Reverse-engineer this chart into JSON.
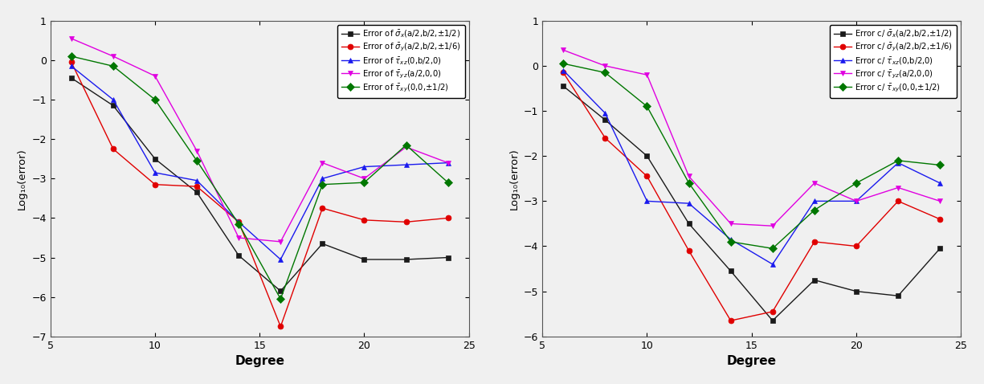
{
  "x": [
    6,
    8,
    10,
    12,
    14,
    16,
    18,
    20,
    22,
    24
  ],
  "left": {
    "sigma_x": [
      -0.45,
      -1.15,
      -2.5,
      -3.35,
      -4.95,
      -5.85,
      -4.65,
      -5.05,
      -5.05,
      -5.0
    ],
    "sigma_y": [
      -0.05,
      -2.25,
      -3.15,
      -3.2,
      -4.1,
      -6.75,
      -3.75,
      -4.05,
      -4.1,
      -4.0
    ],
    "tau_xz": [
      -0.15,
      -1.0,
      -2.85,
      -3.05,
      -4.1,
      -5.05,
      -3.0,
      -2.7,
      -2.65,
      -2.6
    ],
    "tau_yz": [
      0.55,
      0.1,
      -0.4,
      -2.3,
      -4.5,
      -4.6,
      -2.6,
      -3.0,
      -2.2,
      -2.6
    ],
    "tau_xz2": [
      0.1,
      -0.15,
      -1.0,
      -2.55,
      -4.15,
      -6.05,
      -3.15,
      -3.1,
      -2.15,
      -3.1
    ],
    "ylabel": "Log₁₀(error)",
    "ylim": [
      -7,
      1
    ],
    "yticks": [
      1,
      0,
      -1,
      -2,
      -3,
      -4,
      -5,
      -6,
      -7
    ],
    "legend_labels": [
      "Error of $\\bar{\\sigma}_x$(a/2,b/2,±1/2)",
      "Error of $\\bar{\\sigma}_y$(a/2,b/2,±1/6)",
      "Error of $\\bar{\\tau}_{xz}$(0,b/2,0)",
      "Error of $\\bar{\\tau}_{yz}$(a/2,0,0)",
      "Error of $\\bar{\\tau}_{xy}$(0,0,±1/2)"
    ]
  },
  "right": {
    "sigma_x": [
      -0.45,
      -1.2,
      -2.0,
      -3.5,
      -4.55,
      -5.65,
      -4.75,
      -5.0,
      -5.1,
      -4.05
    ],
    "sigma_y": [
      -0.15,
      -1.6,
      -2.45,
      -4.1,
      -5.65,
      -5.45,
      -3.9,
      -4.0,
      -3.0,
      -3.4
    ],
    "tau_xz": [
      -0.1,
      -1.05,
      -3.0,
      -3.05,
      -3.85,
      -4.4,
      -3.0,
      -3.0,
      -2.15,
      -2.6
    ],
    "tau_yz": [
      0.35,
      0.0,
      -0.2,
      -2.45,
      -3.5,
      -3.55,
      -2.6,
      -3.0,
      -2.7,
      -3.0
    ],
    "tau_xz2": [
      0.05,
      -0.15,
      -0.9,
      -2.6,
      -3.9,
      -4.05,
      -3.2,
      -2.6,
      -2.1,
      -2.2
    ],
    "ylabel": "Log₁₀(error)",
    "ylim": [
      -6,
      1
    ],
    "yticks": [
      1,
      0,
      -1,
      -2,
      -3,
      -4,
      -5,
      -6
    ],
    "legend_labels": [
      "Error c/ $\\bar{\\sigma}_x$(a/2,b/2,±1/2)",
      "Error c/ $\\bar{\\sigma}_y$(a/2,b/2,±1/6)",
      "Error c/ $\\bar{\\tau}_{xz}$(0,b/2,0)",
      "Error c/ $\\bar{\\tau}_{yz}$(a/2,0,0)",
      "Error c/ $\\bar{\\tau}_{xy}$(0,0,±1/2)"
    ]
  },
  "colors": {
    "black": "#1a1a1a",
    "red": "#e00000",
    "blue": "#1a1aee",
    "magenta": "#e000e0",
    "green": "#007700"
  },
  "xlim": [
    5,
    25
  ],
  "xticks": [
    5,
    10,
    15,
    20,
    25
  ],
  "xlabel": "Degree",
  "marker_size": 5,
  "line_width": 1.0,
  "legend_fontsize": 7.2,
  "bg_color": "#f0f0f0"
}
